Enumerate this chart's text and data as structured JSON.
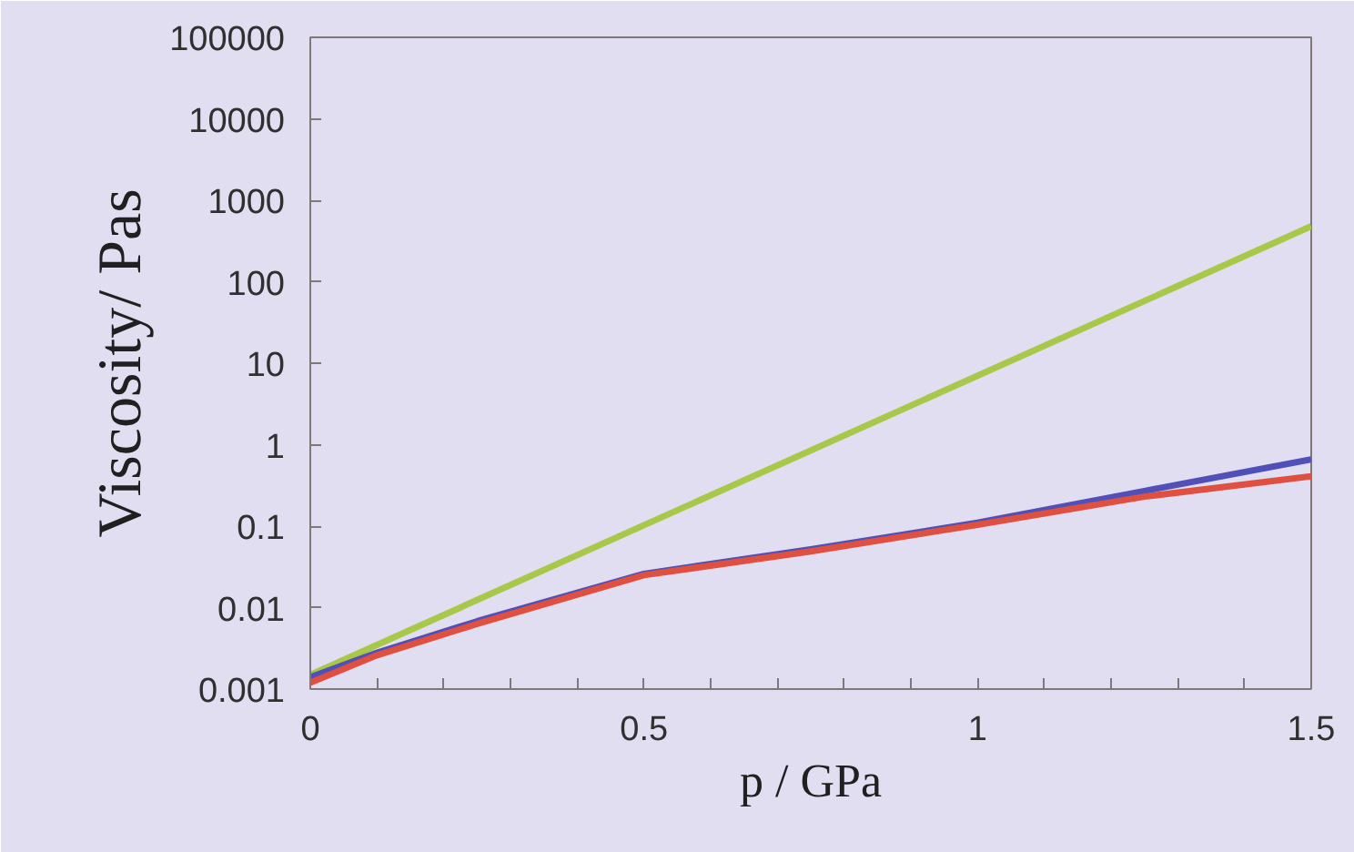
{
  "chart_data": {
    "type": "line",
    "xlabel": "p / GPa",
    "ylabel": "Viscosity/ Pas",
    "log": "y",
    "grid": false,
    "marker": "none",
    "line_style": "solid",
    "xlim": [
      0,
      1.5
    ],
    "xticks": [
      0,
      0.5,
      1,
      1.5
    ],
    "ylim": [
      0.001,
      100000
    ],
    "yticks": [
      0.001,
      0.01,
      0.1,
      1,
      10,
      100,
      1000,
      10000,
      100000
    ],
    "series": [
      {
        "color": "#a8c84a",
        "x": [
          0,
          1.5
        ],
        "values": [
          0.0015,
          480
        ]
      },
      {
        "color": "#5050b8",
        "x": [
          0,
          0.1,
          0.25,
          0.5,
          0.75,
          1,
          1.25,
          1.5
        ],
        "values": [
          0.0014,
          0.0028,
          0.0068,
          0.026,
          0.052,
          0.11,
          0.27,
          0.66
        ]
      },
      {
        "color": "#e05040",
        "x": [
          0,
          0.1,
          0.25,
          0.5,
          0.75,
          1,
          1.25,
          1.5
        ],
        "values": [
          0.0012,
          0.0026,
          0.0063,
          0.025,
          0.049,
          0.104,
          0.23,
          0.41
        ]
      }
    ]
  }
}
